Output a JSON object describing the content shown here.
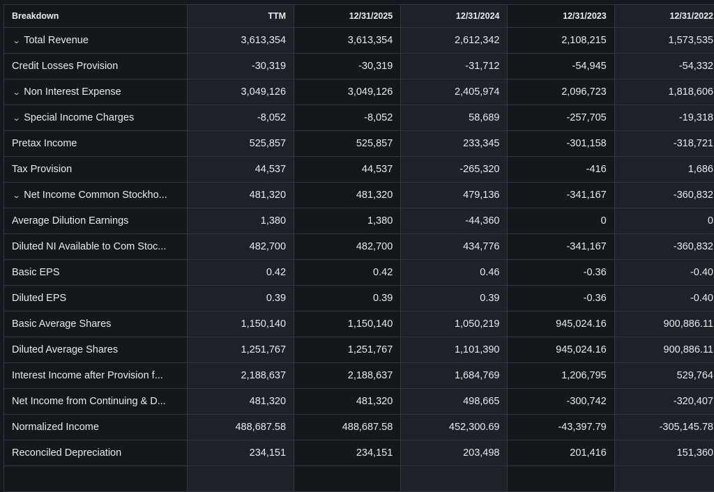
{
  "headers": [
    "Breakdown",
    "TTM",
    "12/31/2025",
    "12/31/2024",
    "12/31/2023",
    "12/31/2022"
  ],
  "rows": [
    {
      "label": "Total Revenue",
      "expandable": true,
      "values": [
        "3,613,354",
        "3,613,354",
        "2,612,342",
        "2,108,215",
        "1,573,535"
      ]
    },
    {
      "label": "Credit Losses Provision",
      "expandable": false,
      "values": [
        "-30,319",
        "-30,319",
        "-31,712",
        "-54,945",
        "-54,332"
      ]
    },
    {
      "label": "Non Interest Expense",
      "expandable": true,
      "values": [
        "3,049,126",
        "3,049,126",
        "2,405,974",
        "2,096,723",
        "1,818,606"
      ]
    },
    {
      "label": "Special Income Charges",
      "expandable": true,
      "values": [
        "-8,052",
        "-8,052",
        "58,689",
        "-257,705",
        "-19,318"
      ]
    },
    {
      "label": "Pretax Income",
      "expandable": false,
      "values": [
        "525,857",
        "525,857",
        "233,345",
        "-301,158",
        "-318,721"
      ]
    },
    {
      "label": "Tax Provision",
      "expandable": false,
      "values": [
        "44,537",
        "44,537",
        "-265,320",
        "-416",
        "1,686"
      ]
    },
    {
      "label": "Net Income Common Stockho...",
      "expandable": true,
      "values": [
        "481,320",
        "481,320",
        "479,136",
        "-341,167",
        "-360,832"
      ]
    },
    {
      "label": "Average Dilution Earnings",
      "expandable": false,
      "values": [
        "1,380",
        "1,380",
        "-44,360",
        "0",
        "0"
      ]
    },
    {
      "label": "Diluted NI Available to Com Stoc...",
      "expandable": false,
      "values": [
        "482,700",
        "482,700",
        "434,776",
        "-341,167",
        "-360,832"
      ]
    },
    {
      "label": "Basic EPS",
      "expandable": false,
      "values": [
        "0.42",
        "0.42",
        "0.46",
        "-0.36",
        "-0.40"
      ]
    },
    {
      "label": "Diluted EPS",
      "expandable": false,
      "values": [
        "0.39",
        "0.39",
        "0.39",
        "-0.36",
        "-0.40"
      ]
    },
    {
      "label": "Basic Average Shares",
      "expandable": false,
      "values": [
        "1,150,140",
        "1,150,140",
        "1,050,219",
        "945,024.16",
        "900,886.11"
      ]
    },
    {
      "label": "Diluted Average Shares",
      "expandable": false,
      "values": [
        "1,251,767",
        "1,251,767",
        "1,101,390",
        "945,024.16",
        "900,886.11"
      ]
    },
    {
      "label": "Interest Income after Provision f...",
      "expandable": false,
      "values": [
        "2,188,637",
        "2,188,637",
        "1,684,769",
        "1,206,795",
        "529,764"
      ]
    },
    {
      "label": "Net Income from Continuing & D...",
      "expandable": false,
      "values": [
        "481,320",
        "481,320",
        "498,665",
        "-300,742",
        "-320,407"
      ]
    },
    {
      "label": "Normalized Income",
      "expandable": false,
      "values": [
        "488,687.58",
        "488,687.58",
        "452,300.69",
        "-43,397.79",
        "-305,145.78"
      ]
    },
    {
      "label": "Reconciled Depreciation",
      "expandable": false,
      "values": [
        "234,151",
        "234,151",
        "203,498",
        "201,416",
        "151,360"
      ]
    },
    {
      "label": "",
      "expandable": false,
      "values": [
        "",
        "",
        "",
        "",
        ""
      ]
    }
  ]
}
